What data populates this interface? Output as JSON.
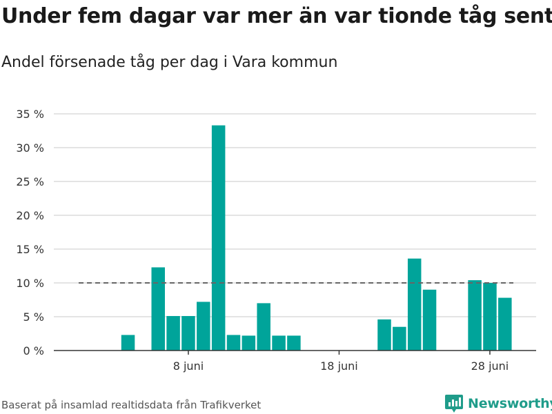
{
  "header": {
    "title": "Under fem dagar var mer än var tionde tåg sent",
    "subtitle": "Andel försenade tåg per dag i Vara kommun"
  },
  "footer": {
    "source": "Baserat på insamlad realtidsdata från Trafikverket",
    "brand": "Newsworthy"
  },
  "colors": {
    "bar": "#00a49a",
    "grid": "#dcdcdc",
    "axis": "#333333",
    "reference_line": "#666666",
    "brand": "#1f9c8a",
    "brand_icon": "brand-logo-icon"
  },
  "chart_data": {
    "type": "bar",
    "x": [
      1,
      2,
      3,
      4,
      5,
      6,
      7,
      8,
      9,
      10,
      11,
      12,
      13,
      14,
      15,
      16,
      17,
      18,
      19,
      20,
      21,
      22,
      23,
      24,
      25,
      26,
      27,
      28,
      29,
      30
    ],
    "values": [
      0,
      0,
      0,
      2.3,
      0,
      12.3,
      5.1,
      5.1,
      7.2,
      33.3,
      2.3,
      2.2,
      7.0,
      2.2,
      2.2,
      0,
      0,
      0,
      0,
      0,
      4.6,
      3.5,
      13.6,
      9.0,
      0,
      0,
      10.4,
      10.0,
      7.8,
      0
    ],
    "xticks": [
      8,
      18,
      28
    ],
    "xtick_labels": [
      "8 juni",
      "18 juni",
      "28 juni"
    ],
    "yticks": [
      0,
      5,
      10,
      15,
      20,
      25,
      30,
      35
    ],
    "ytick_labels": [
      "0 %",
      "5 %",
      "10 %",
      "15 %",
      "20 %",
      "25 %",
      "30 %",
      "35 %"
    ],
    "ylim": [
      0,
      35
    ],
    "reference_line": 10,
    "grid": true,
    "xlabel": "",
    "ylabel": ""
  }
}
